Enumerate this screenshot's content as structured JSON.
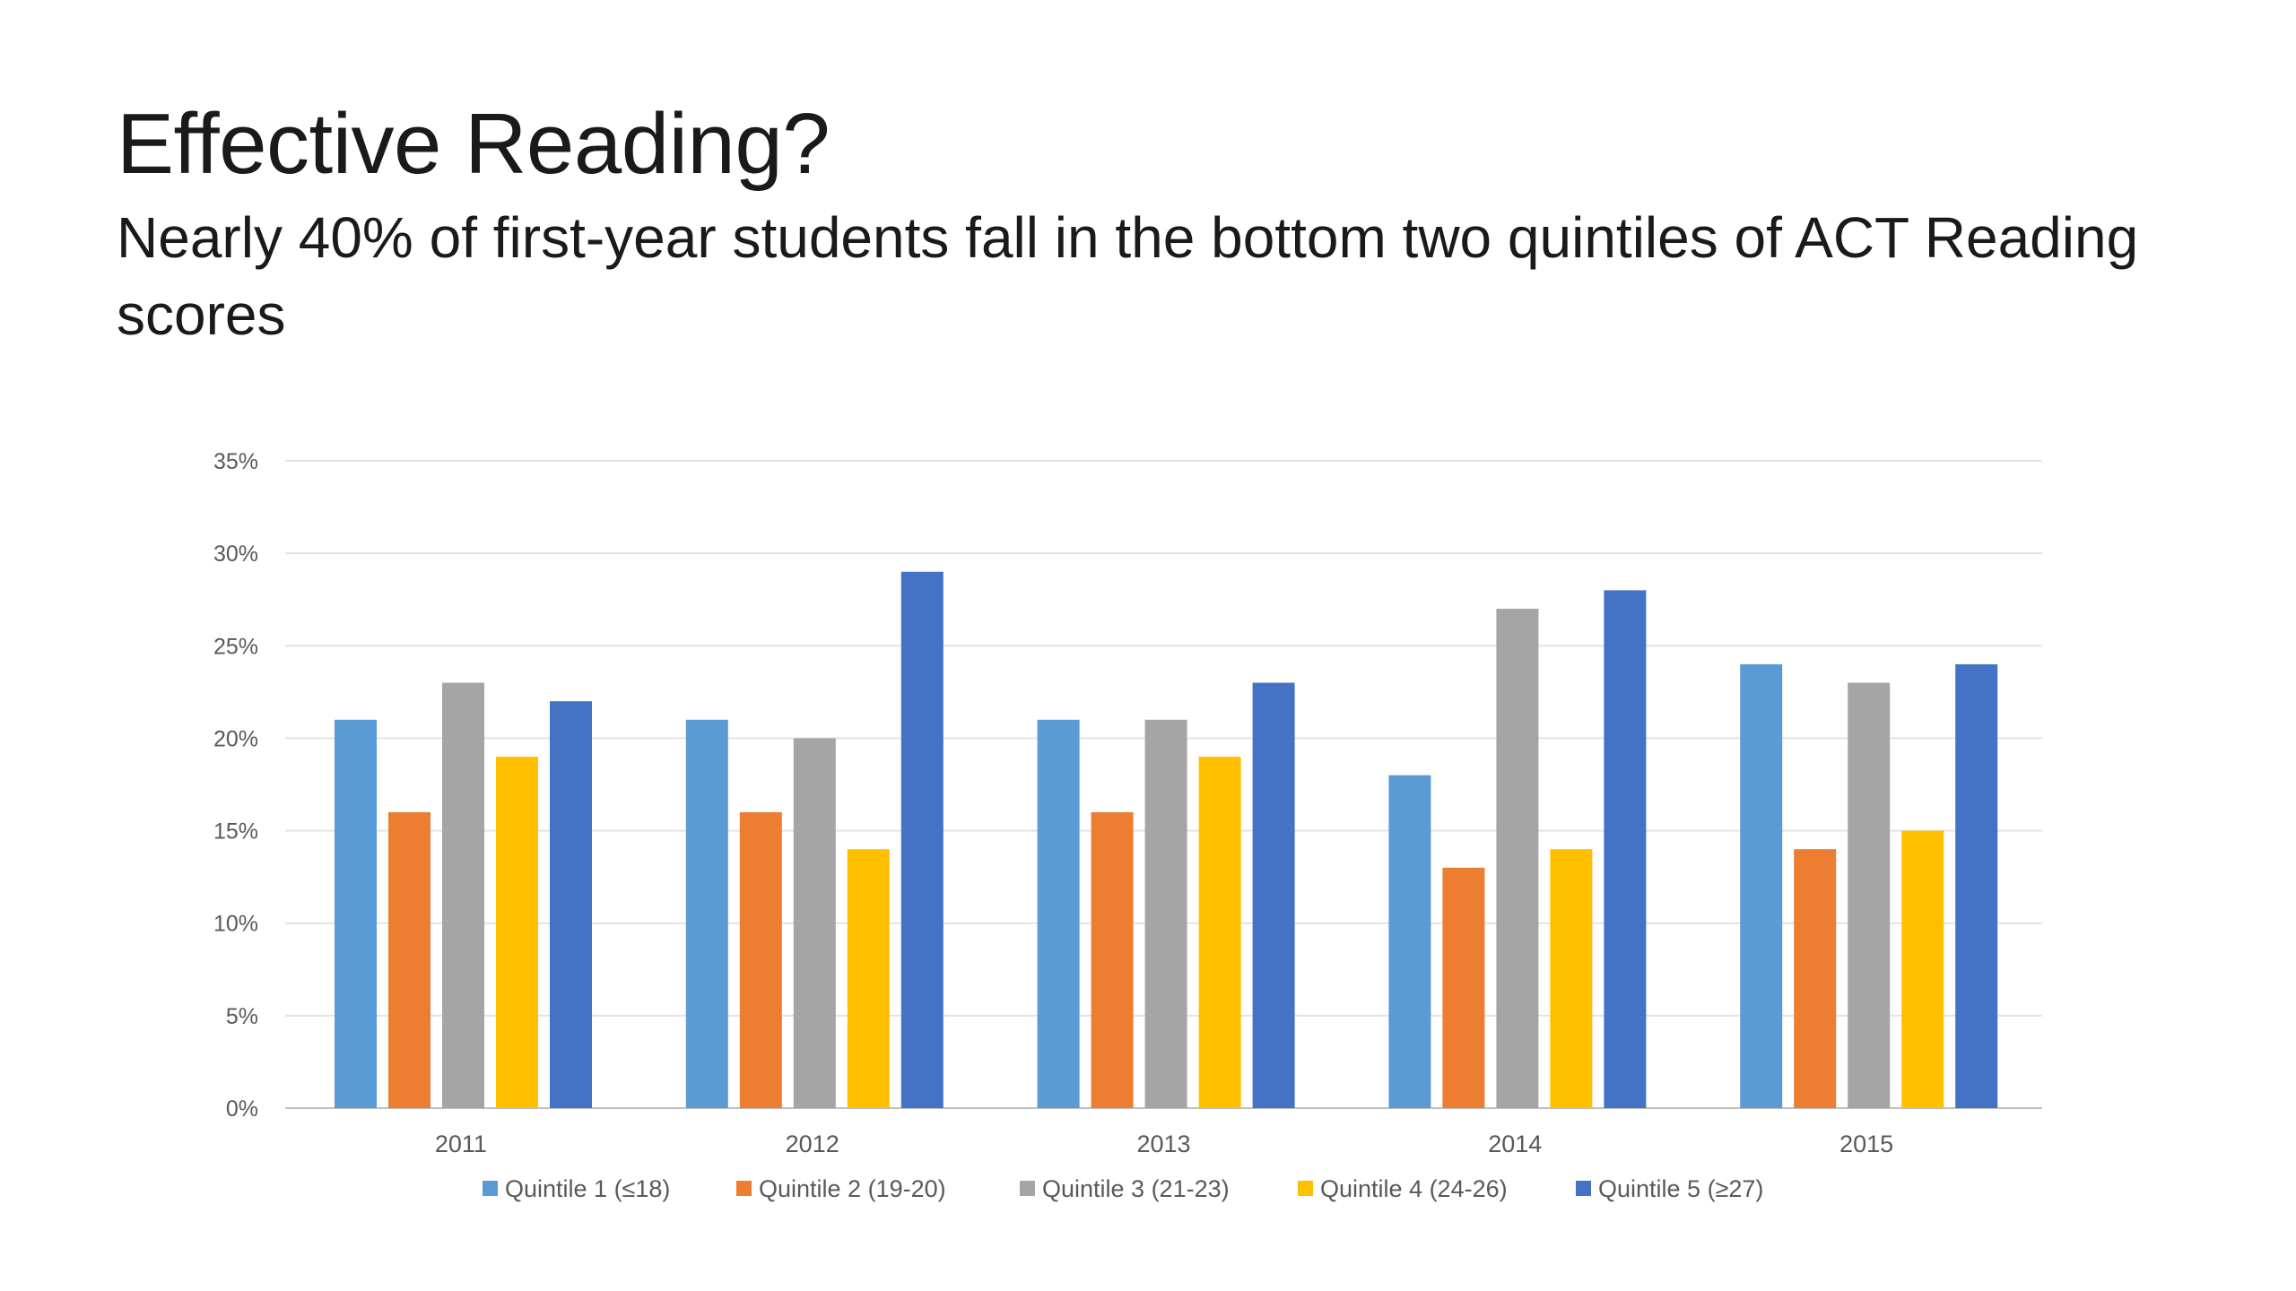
{
  "slide": {
    "title": "Effective Reading?",
    "subtitle": "Nearly 40% of first-year students fall in the bottom two quintiles of ACT Reading scores"
  },
  "chart_data": {
    "type": "bar",
    "categories": [
      "2011",
      "2012",
      "2013",
      "2014",
      "2015"
    ],
    "series": [
      {
        "name": "Quintile 1 (≤18)",
        "color": "#5b9bd5",
        "values": [
          21,
          21,
          21,
          18,
          24
        ]
      },
      {
        "name": "Quintile 2 (19-20)",
        "color": "#ed7d31",
        "values": [
          16,
          16,
          16,
          13,
          14
        ]
      },
      {
        "name": "Quintile 3 (21-23)",
        "color": "#a5a5a5",
        "values": [
          23,
          20,
          21,
          27,
          23
        ]
      },
      {
        "name": "Quintile 4 (24-26)",
        "color": "#ffc000",
        "values": [
          19,
          14,
          19,
          14,
          15
        ]
      },
      {
        "name": "Quintile 5 (≥27)",
        "color": "#4472c4",
        "values": [
          22,
          29,
          23,
          28,
          24
        ]
      }
    ],
    "yticks": [
      0,
      5,
      10,
      15,
      20,
      25,
      30,
      35
    ],
    "ytick_labels": [
      "0%",
      "5%",
      "10%",
      "15%",
      "20%",
      "25%",
      "30%",
      "35%"
    ],
    "ylim": [
      0,
      35
    ],
    "grid": true,
    "legend": "bottom"
  }
}
